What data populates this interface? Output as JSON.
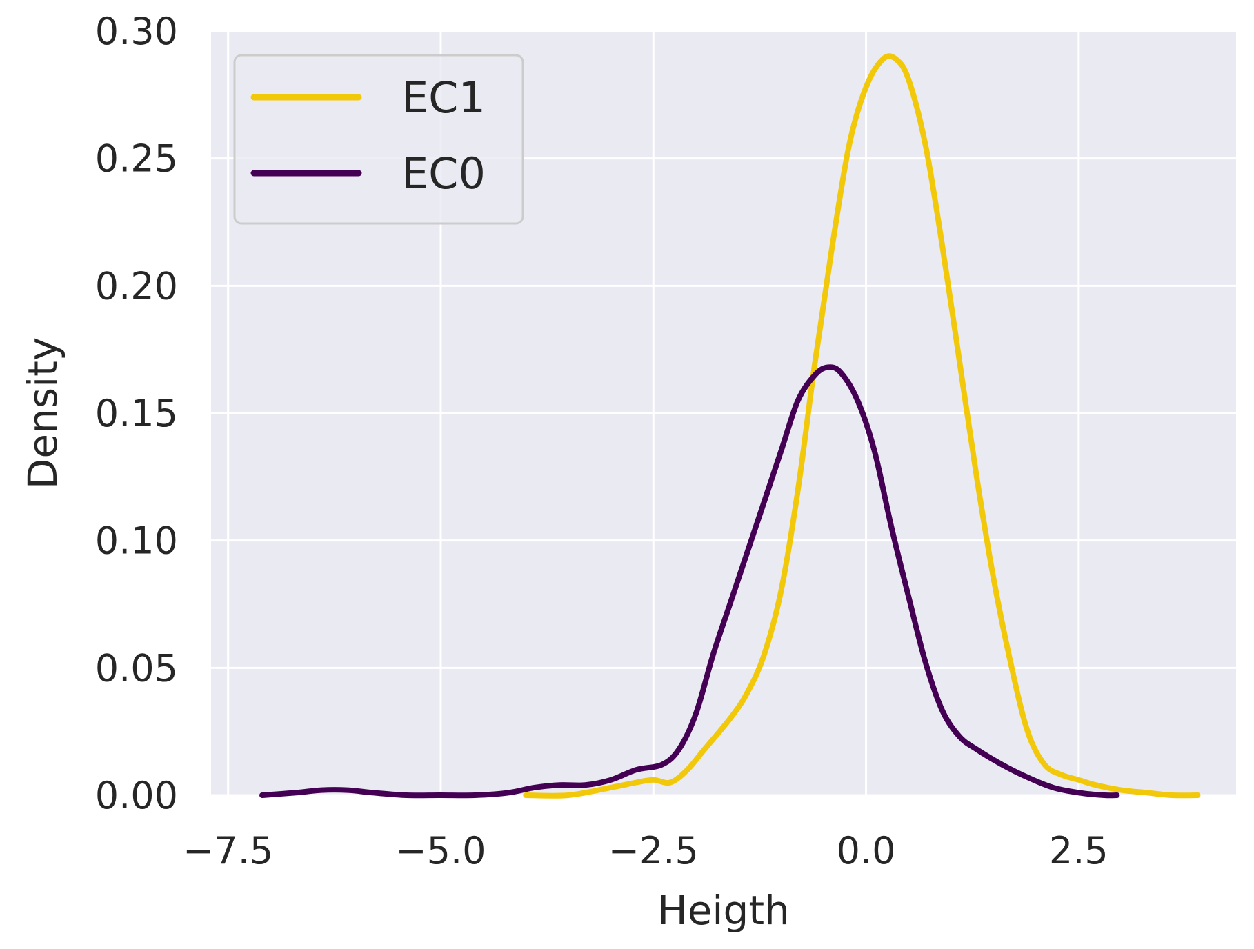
{
  "chart_data": {
    "type": "line",
    "title": "",
    "xlabel": "Heigth",
    "ylabel": "Density",
    "xlim": [
      -7.7,
      4.35
    ],
    "ylim": [
      0.0,
      0.3
    ],
    "xticks": [
      -7.5,
      -5.0,
      -2.5,
      0.0,
      2.5
    ],
    "xtick_labels": [
      "−7.5",
      "−5.0",
      "−2.5",
      "0.0",
      "2.5"
    ],
    "yticks": [
      0.0,
      0.05,
      0.1,
      0.15,
      0.2,
      0.25,
      0.3
    ],
    "ytick_labels": [
      "0.00",
      "0.05",
      "0.10",
      "0.15",
      "0.20",
      "0.25",
      "0.30"
    ],
    "grid": true,
    "legend_position": "top-left",
    "series": [
      {
        "name": "EC1",
        "color": "#f2c80a",
        "x": [
          -4.0,
          -3.5,
          -3.0,
          -2.7,
          -2.5,
          -2.3,
          -2.1,
          -1.9,
          -1.6,
          -1.4,
          -1.2,
          -1.0,
          -0.8,
          -0.6,
          -0.4,
          -0.2,
          0.0,
          0.2,
          0.35,
          0.5,
          0.7,
          0.9,
          1.1,
          1.3,
          1.5,
          1.7,
          1.9,
          2.1,
          2.3,
          2.5,
          2.7,
          3.0,
          3.3,
          3.6,
          3.9
        ],
        "y": [
          0.0,
          0.0,
          0.003,
          0.005,
          0.006,
          0.005,
          0.01,
          0.018,
          0.03,
          0.04,
          0.055,
          0.08,
          0.12,
          0.17,
          0.215,
          0.255,
          0.278,
          0.289,
          0.289,
          0.281,
          0.255,
          0.215,
          0.17,
          0.125,
          0.085,
          0.052,
          0.025,
          0.012,
          0.008,
          0.006,
          0.004,
          0.002,
          0.001,
          0.0,
          0.0
        ],
        "values_note": ""
      },
      {
        "name": "EC0",
        "color": "#440154",
        "x": [
          -7.1,
          -6.7,
          -6.4,
          -6.1,
          -5.8,
          -5.4,
          -5.0,
          -4.6,
          -4.2,
          -3.9,
          -3.6,
          -3.3,
          -3.0,
          -2.7,
          -2.4,
          -2.2,
          -2.0,
          -1.8,
          -1.6,
          -1.4,
          -1.2,
          -1.0,
          -0.8,
          -0.6,
          -0.45,
          -0.3,
          -0.1,
          0.1,
          0.3,
          0.5,
          0.7,
          0.9,
          1.1,
          1.3,
          1.6,
          1.9,
          2.2,
          2.5,
          2.8,
          2.95
        ],
        "y": [
          0.0,
          0.001,
          0.002,
          0.002,
          0.001,
          0.0,
          0.0,
          0.0,
          0.001,
          0.003,
          0.004,
          0.004,
          0.006,
          0.01,
          0.012,
          0.018,
          0.032,
          0.055,
          0.075,
          0.095,
          0.115,
          0.135,
          0.155,
          0.165,
          0.168,
          0.166,
          0.155,
          0.135,
          0.105,
          0.078,
          0.052,
          0.033,
          0.023,
          0.018,
          0.012,
          0.007,
          0.003,
          0.001,
          0.0,
          0.0
        ]
      }
    ]
  }
}
